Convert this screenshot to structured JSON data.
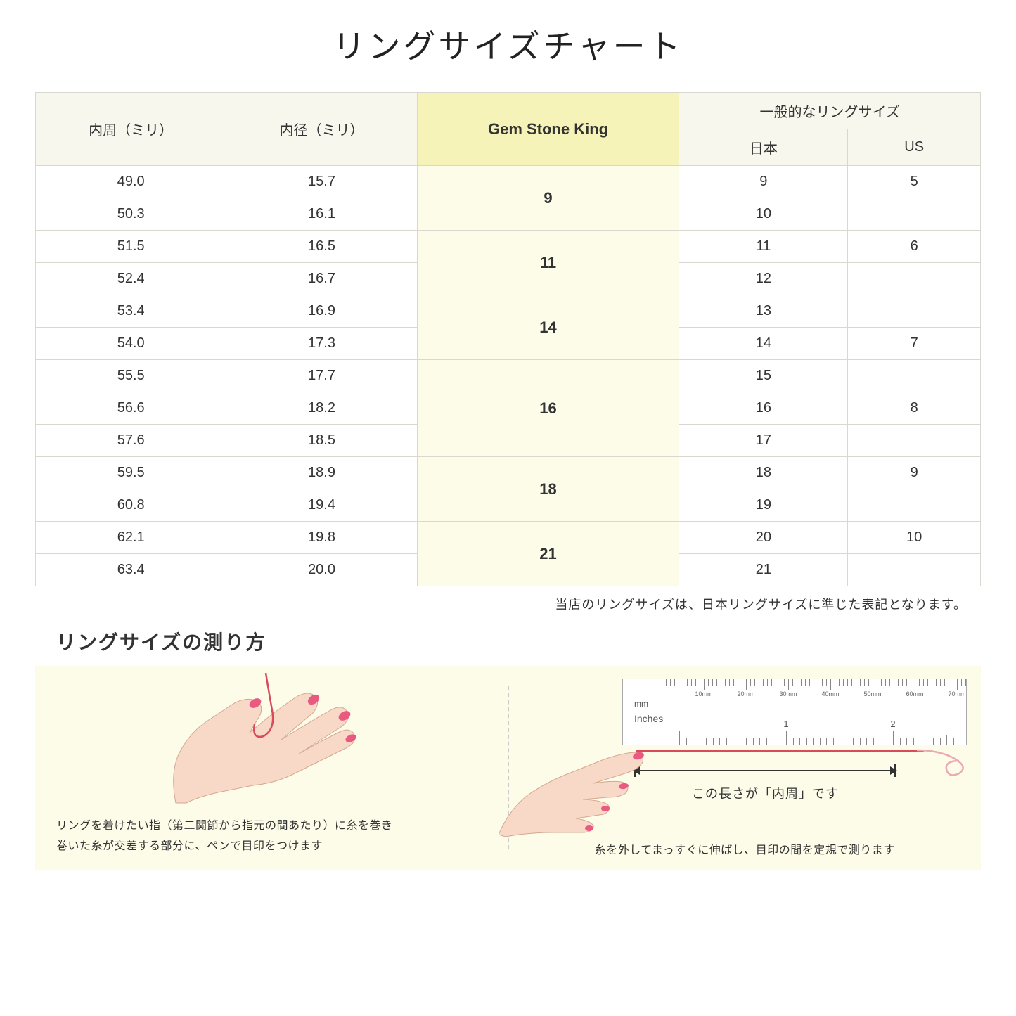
{
  "title": "リングサイズチャート",
  "headers": {
    "circumference": "内周（ミリ）",
    "diameter": "内径（ミリ）",
    "gsk": "Gem Stone King",
    "general": "一般的なリングサイズ",
    "japan": "日本",
    "us": "US"
  },
  "rows": [
    {
      "circ": "49.0",
      "diam": "15.7",
      "jp": "9",
      "us": "5"
    },
    {
      "circ": "50.3",
      "diam": "16.1",
      "jp": "10",
      "us": ""
    },
    {
      "circ": "51.5",
      "diam": "16.5",
      "jp": "11",
      "us": "6"
    },
    {
      "circ": "52.4",
      "diam": "16.7",
      "jp": "12",
      "us": ""
    },
    {
      "circ": "53.4",
      "diam": "16.9",
      "jp": "13",
      "us": ""
    },
    {
      "circ": "54.0",
      "diam": "17.3",
      "jp": "14",
      "us": "7"
    },
    {
      "circ": "55.5",
      "diam": "17.7",
      "jp": "15",
      "us": ""
    },
    {
      "circ": "56.6",
      "diam": "18.2",
      "jp": "16",
      "us": "8"
    },
    {
      "circ": "57.6",
      "diam": "18.5",
      "jp": "17",
      "us": ""
    },
    {
      "circ": "59.5",
      "diam": "18.9",
      "jp": "18",
      "us": "9"
    },
    {
      "circ": "60.8",
      "diam": "19.4",
      "jp": "19",
      "us": ""
    },
    {
      "circ": "62.1",
      "diam": "19.8",
      "jp": "20",
      "us": "10"
    },
    {
      "circ": "63.4",
      "diam": "20.0",
      "jp": "21",
      "us": ""
    }
  ],
  "gsk_groups": [
    {
      "label": "9",
      "span": 2
    },
    {
      "label": "11",
      "span": 2
    },
    {
      "label": "14",
      "span": 2
    },
    {
      "label": "16",
      "span": 3
    },
    {
      "label": "18",
      "span": 2
    },
    {
      "label": "21",
      "span": 2
    }
  ],
  "note": "当店のリングサイズは、日本リングサイズに準じた表記となります。",
  "subtitle": "リングサイズの測り方",
  "left_caption_1": "リングを着けたい指（第二関節から指元の間あたり）に糸を巻き",
  "left_caption_2": "巻いた糸が交差する部分に、ペンで目印をつけます",
  "right_arrow_label": "この長さが「内周」です",
  "right_caption": "糸を外してまっすぐに伸ばし、目印の間を定規で測ります",
  "ruler": {
    "mm_unit": "mm",
    "in_unit": "Inches",
    "mm_marks": [
      "10mm",
      "20mm",
      "30mm",
      "40mm",
      "50mm",
      "60mm",
      "70mm"
    ],
    "in_marks": [
      "1",
      "2"
    ]
  },
  "colors": {
    "header_bg": "#f7f7ee",
    "gsk_bg": "#f5f3b8",
    "gsk_cell_bg": "#fdfce8",
    "border": "#d8d8d0",
    "panel_bg": "#fdfce8",
    "thread": "#d94a5a",
    "skin": "#f8d9c8",
    "nail": "#e85a80"
  }
}
